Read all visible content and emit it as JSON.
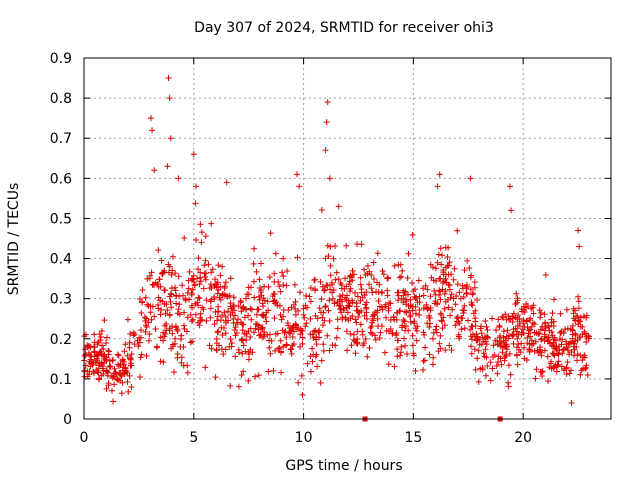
{
  "chart_data": {
    "type": "scatter",
    "title": "Day 307 of 2024, SRMTID for receiver ohi3",
    "xlabel": "GPS time / hours",
    "ylabel": "SRMTID / TECUs",
    "xlim": [
      0,
      24
    ],
    "ylim": [
      0,
      0.9
    ],
    "xticks": [
      0,
      5,
      10,
      15,
      20
    ],
    "yticks": [
      0,
      0.1,
      0.2,
      0.3,
      0.4,
      0.5,
      0.6,
      0.7,
      0.8,
      0.9
    ],
    "xtick_labels": [
      "0",
      "5",
      "10",
      "15",
      "20"
    ],
    "ytick_labels": [
      "0",
      "0.1",
      "0.2",
      "0.3",
      "0.4",
      "0.5",
      "0.6",
      "0.7",
      "0.8",
      "0.9"
    ],
    "grid": true,
    "marker": "+",
    "color": "#e00000",
    "zero_markers": {
      "style": "square",
      "x": [
        12.8,
        18.95
      ],
      "y": [
        0,
        0
      ]
    },
    "series": [
      {
        "name": "SRMTID",
        "note": "dense scatter; envelope values (x hours, y TECU) read from figure",
        "x": [
          0.0,
          0.5,
          1.0,
          1.5,
          2.0,
          2.5,
          3.0,
          3.5,
          4.0,
          4.5,
          5.0,
          5.5,
          6.0,
          6.5,
          7.0,
          7.5,
          8.0,
          8.5,
          9.0,
          9.5,
          10.0,
          10.5,
          11.0,
          11.5,
          12.0,
          12.5,
          13.0,
          13.5,
          14.0,
          14.5,
          15.0,
          15.5,
          16.0,
          16.5,
          17.0,
          17.5,
          18.0,
          18.5,
          19.0,
          19.5,
          20.0,
          20.5,
          21.0,
          21.5,
          22.0,
          22.5,
          23.0
        ],
        "mean": [
          0.14,
          0.15,
          0.14,
          0.11,
          0.13,
          0.2,
          0.29,
          0.27,
          0.26,
          0.25,
          0.3,
          0.3,
          0.27,
          0.26,
          0.23,
          0.22,
          0.28,
          0.26,
          0.26,
          0.24,
          0.22,
          0.24,
          0.28,
          0.3,
          0.28,
          0.26,
          0.27,
          0.28,
          0.24,
          0.27,
          0.25,
          0.23,
          0.28,
          0.32,
          0.26,
          0.3,
          0.17,
          0.17,
          0.18,
          0.2,
          0.22,
          0.2,
          0.19,
          0.18,
          0.17,
          0.22,
          0.18
        ],
        "spread": [
          0.04,
          0.04,
          0.05,
          0.04,
          0.05,
          0.07,
          0.1,
          0.11,
          0.1,
          0.11,
          0.1,
          0.1,
          0.1,
          0.1,
          0.09,
          0.09,
          0.1,
          0.1,
          0.1,
          0.1,
          0.09,
          0.1,
          0.1,
          0.1,
          0.09,
          0.09,
          0.09,
          0.09,
          0.08,
          0.1,
          0.09,
          0.08,
          0.1,
          0.11,
          0.09,
          0.11,
          0.06,
          0.06,
          0.06,
          0.08,
          0.08,
          0.07,
          0.07,
          0.07,
          0.07,
          0.08,
          0.06
        ],
        "peaks": [
          {
            "x": 3.05,
            "y": 0.75
          },
          {
            "x": 3.1,
            "y": 0.72
          },
          {
            "x": 3.2,
            "y": 0.62
          },
          {
            "x": 3.85,
            "y": 0.85
          },
          {
            "x": 3.9,
            "y": 0.8
          },
          {
            "x": 3.95,
            "y": 0.7
          },
          {
            "x": 3.8,
            "y": 0.63
          },
          {
            "x": 4.3,
            "y": 0.6
          },
          {
            "x": 5.0,
            "y": 0.66
          },
          {
            "x": 5.1,
            "y": 0.58
          },
          {
            "x": 6.5,
            "y": 0.59
          },
          {
            "x": 9.7,
            "y": 0.61
          },
          {
            "x": 9.8,
            "y": 0.58
          },
          {
            "x": 11.1,
            "y": 0.79
          },
          {
            "x": 11.05,
            "y": 0.74
          },
          {
            "x": 11.0,
            "y": 0.67
          },
          {
            "x": 11.2,
            "y": 0.6
          },
          {
            "x": 11.6,
            "y": 0.53
          },
          {
            "x": 16.2,
            "y": 0.61
          },
          {
            "x": 16.1,
            "y": 0.58
          },
          {
            "x": 17.6,
            "y": 0.6
          },
          {
            "x": 19.4,
            "y": 0.58
          },
          {
            "x": 19.45,
            "y": 0.52
          },
          {
            "x": 22.5,
            "y": 0.47
          },
          {
            "x": 22.55,
            "y": 0.43
          },
          {
            "x": 9.95,
            "y": 0.06
          },
          {
            "x": 22.2,
            "y": 0.04
          }
        ]
      }
    ]
  }
}
